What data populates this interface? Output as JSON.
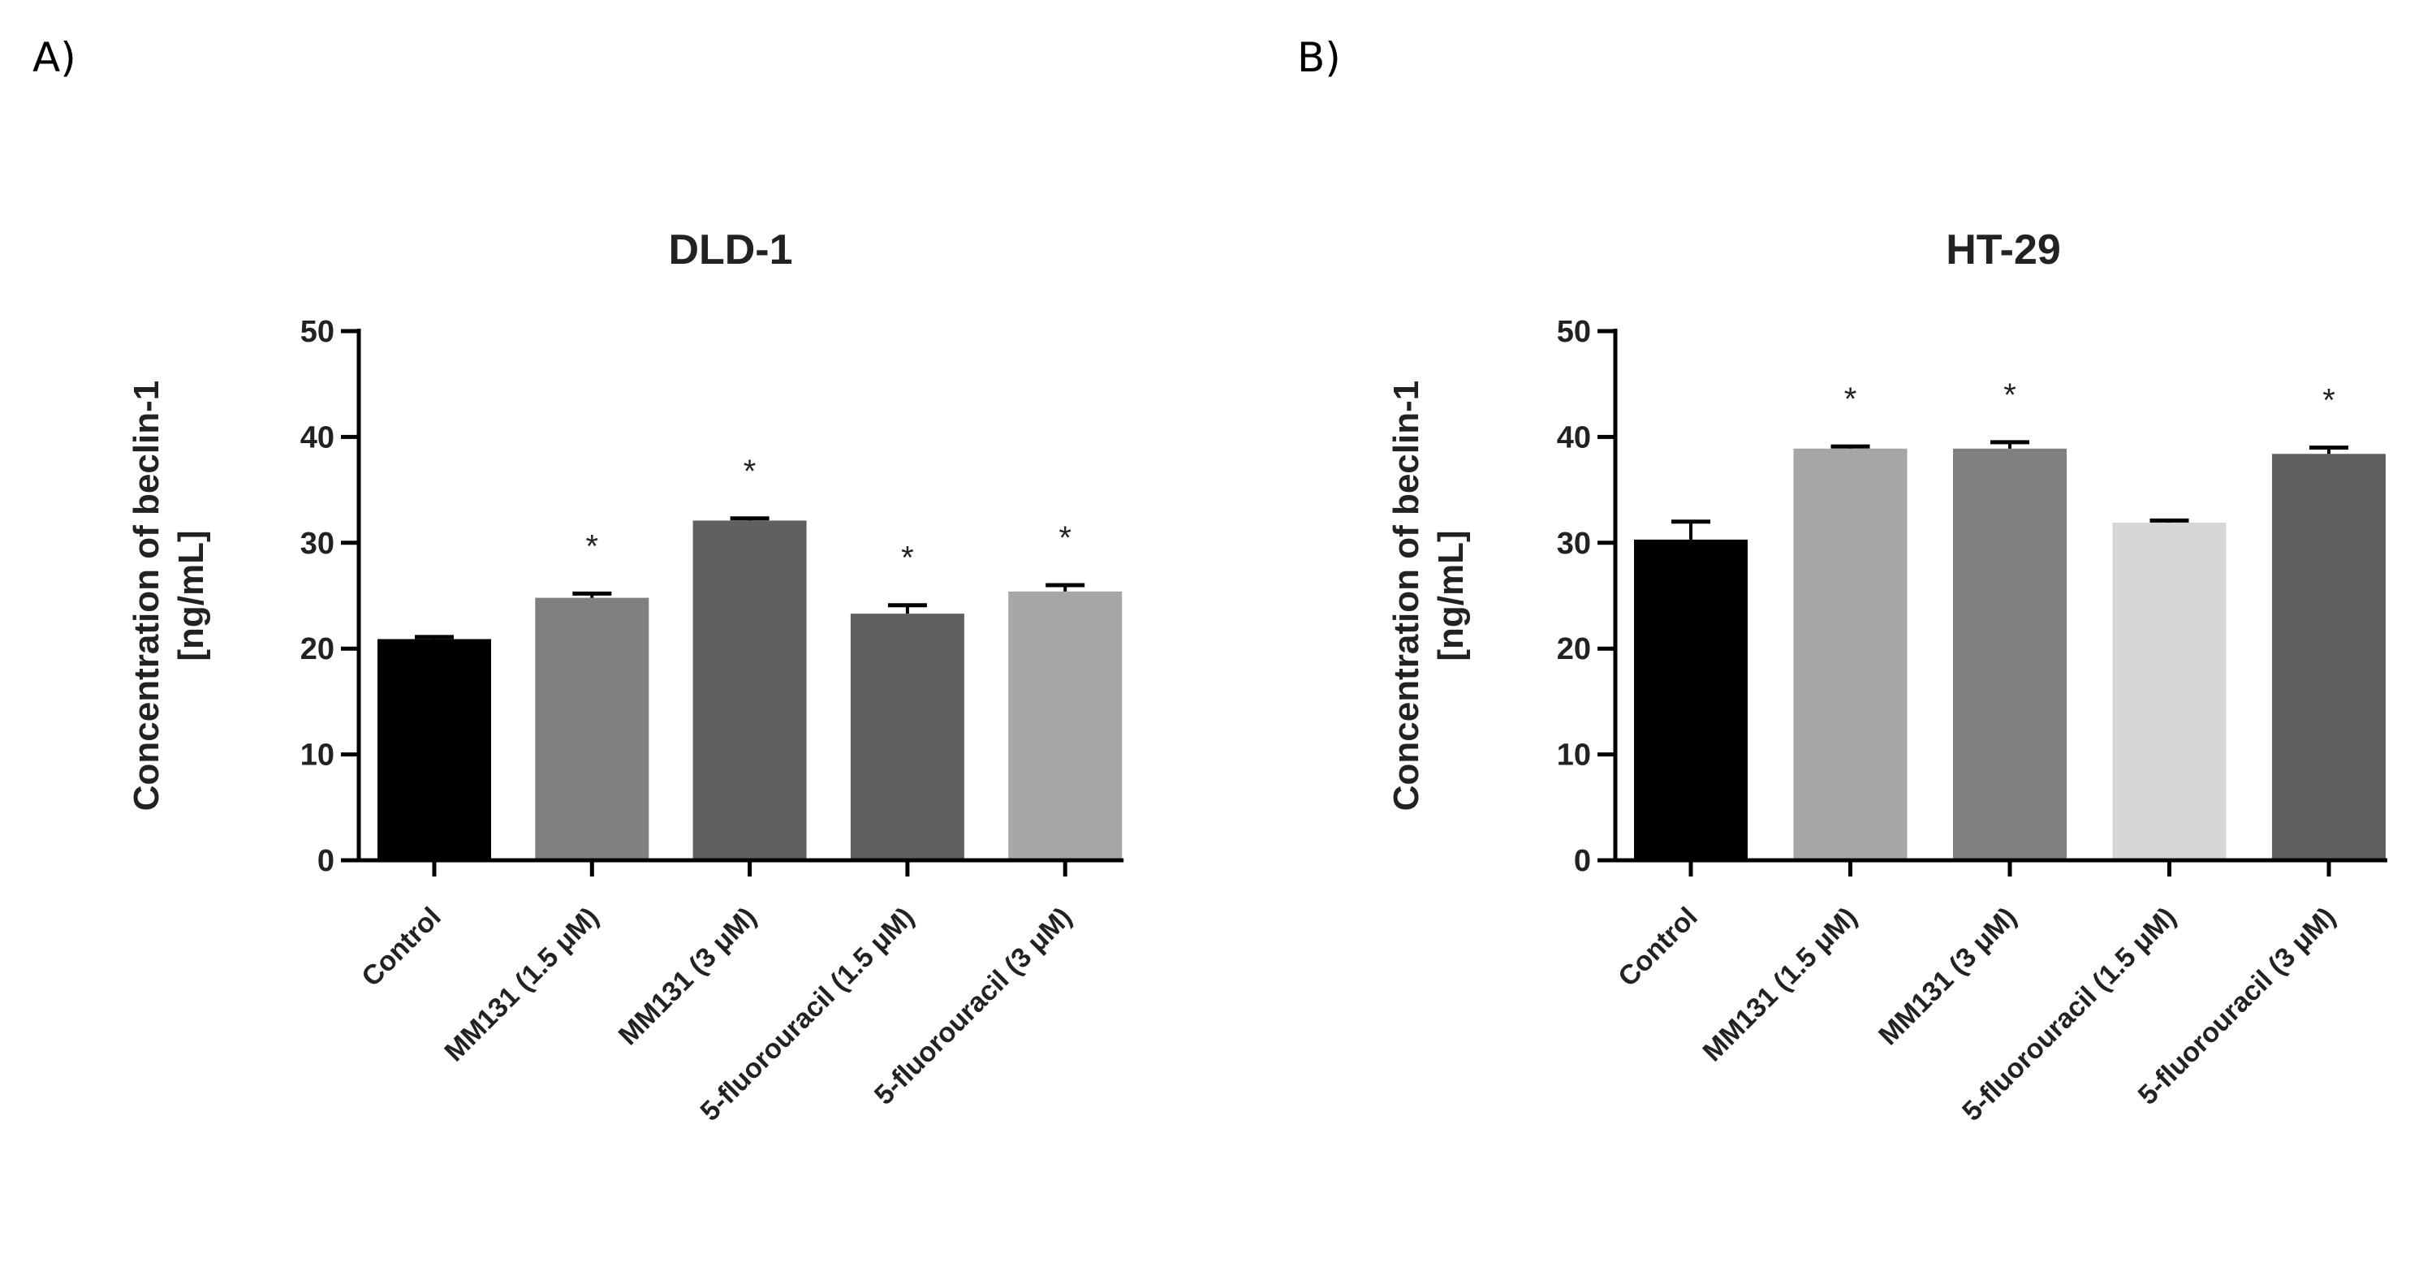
{
  "panels": [
    {
      "label": "A)"
    },
    {
      "label": "B)"
    }
  ],
  "chart_data": [
    {
      "type": "bar",
      "title": "DLD-1",
      "xlabel": "",
      "ylabel_lines": [
        "Concentration of beclin-1",
        "[ng/mL]"
      ],
      "ylim": [
        0,
        50
      ],
      "yticks": [
        0,
        10,
        20,
        30,
        40,
        50
      ],
      "categories": [
        "Control",
        "MM131 (1.5 μM)",
        "MM131 (3 μM)",
        "5-fluorouracil (1.5 μM)",
        "5-fluorouracil (3 μM)"
      ],
      "values": [
        20.9,
        24.8,
        32.1,
        23.3,
        25.4
      ],
      "errors": [
        0.2,
        0.4,
        0.2,
        0.8,
        0.6
      ],
      "significance": [
        "",
        "*",
        "*",
        "*",
        "*"
      ],
      "colors": [
        "#000000",
        "#808080",
        "#606060",
        "#606060",
        "#a6a6a9"
      ],
      "grid": false
    },
    {
      "type": "bar",
      "title": "HT-29",
      "xlabel": "",
      "ylabel_lines": [
        "Concentration of beclin-1",
        "[ng/mL]"
      ],
      "ylim": [
        0,
        50
      ],
      "yticks": [
        0,
        10,
        20,
        30,
        40,
        50
      ],
      "categories": [
        "Control",
        "MM131 (1.5 μM)",
        "MM131 (3 μM)",
        "5-fluorouracil (1.5 μM)",
        "5-fluorouracil (3 μM)"
      ],
      "values": [
        30.3,
        38.9,
        38.9,
        31.9,
        38.4
      ],
      "errors": [
        1.7,
        0.2,
        0.6,
        0.2,
        0.6
      ],
      "significance": [
        "",
        "*",
        "*",
        "",
        "*"
      ],
      "colors": [
        "#000000",
        "#a6a6a9",
        "#808080",
        "#d6d6d6",
        "#606060"
      ],
      "grid": false
    }
  ]
}
